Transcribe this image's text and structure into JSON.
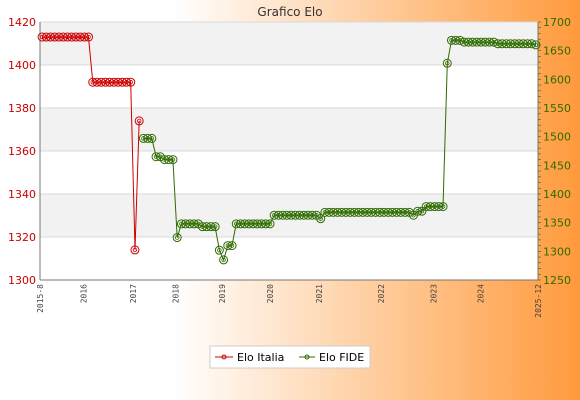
{
  "chart_data": {
    "type": "line",
    "title": "Grafico Elo",
    "grid": true,
    "legend_position": "bottom-center",
    "colors": {
      "italia": "#cc0000",
      "fide": "#2e6b00",
      "bg_left": "#ffffff",
      "bg_right": "#ff9a3c"
    },
    "y_left": {
      "min": 1300,
      "max": 1420,
      "ticks": [
        1300,
        1320,
        1340,
        1360,
        1380,
        1400,
        1420
      ],
      "color": "#cc0000"
    },
    "y_right": {
      "min": 1250,
      "max": 1700,
      "ticks": [
        1250,
        1300,
        1350,
        1400,
        1450,
        1500,
        1550,
        1600,
        1650,
        1700
      ],
      "color": "#2e6b00"
    },
    "x_tick_labels": [
      "2015-8",
      "2016",
      "2017",
      "2018",
      "2019",
      "2020",
      "2021",
      "2022",
      "2023",
      "2024",
      "2025-12"
    ],
    "x_tick_fraction": [
      0.0,
      0.087,
      0.187,
      0.272,
      0.365,
      0.462,
      0.56,
      0.685,
      0.79,
      0.885,
      1.0
    ],
    "series": [
      {
        "name": "Elo Italia",
        "axis": "left",
        "values": [
          1413,
          1413,
          1413,
          1413,
          1413,
          1413,
          1413,
          1413,
          1413,
          1413,
          1413,
          1413,
          1392,
          1392,
          1392,
          1392,
          1392,
          1392,
          1392,
          1392,
          1392,
          1392,
          1314,
          1374
        ]
      },
      {
        "name": "Elo FIDE",
        "axis": "right",
        "x_start_index": 24,
        "values": [
          1497,
          1497,
          1497,
          1465,
          1465,
          1460,
          1460,
          1460,
          1324,
          1348,
          1348,
          1348,
          1348,
          1348,
          1343,
          1343,
          1343,
          1343,
          1302,
          1285,
          1310,
          1310,
          1348,
          1348,
          1348,
          1348,
          1348,
          1348,
          1348,
          1348,
          1348,
          1363,
          1363,
          1363,
          1363,
          1363,
          1363,
          1363,
          1363,
          1363,
          1363,
          1363,
          1357,
          1368,
          1368,
          1368,
          1368,
          1368,
          1368,
          1368,
          1368,
          1368,
          1368,
          1368,
          1368,
          1368,
          1368,
          1368,
          1368,
          1368,
          1368,
          1368,
          1368,
          1368,
          1363,
          1370,
          1370,
          1378,
          1378,
          1378,
          1378,
          1378,
          1628,
          1668,
          1668,
          1668,
          1665,
          1665,
          1665,
          1665,
          1665,
          1665,
          1665,
          1665,
          1662,
          1662,
          1662,
          1662,
          1662,
          1662,
          1662,
          1662,
          1662,
          1660
        ]
      }
    ]
  },
  "legend": {
    "italia_label": "Elo Italia",
    "fide_label": "Elo FIDE"
  }
}
